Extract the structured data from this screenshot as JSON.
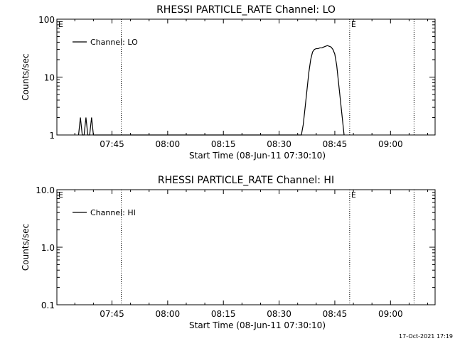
{
  "chart_data": [
    {
      "type": "line",
      "title": "RHESSI PARTICLE_RATE Channel: LO",
      "xlabel": "Start Time (08-Jun-11 07:30:10)",
      "ylabel": "Counts/sec",
      "yscale": "log",
      "xlim": [
        "07:30:10",
        "09:12:00"
      ],
      "ylim": [
        1,
        100
      ],
      "x_ticks": [
        "07:45",
        "08:00",
        "08:15",
        "08:30",
        "08:45",
        "09:00"
      ],
      "y_ticks": [
        "1",
        "10",
        "100"
      ],
      "legend": "top-left",
      "grid": false,
      "series": [
        {
          "name": "Channel: LO",
          "color": "#000000",
          "x": [
            "07:36:00",
            "07:36:30",
            "07:37:00",
            "07:37:30",
            "07:38:00",
            "07:38:30",
            "07:39:00",
            "07:39:30",
            "07:40:00",
            "07:40:30",
            "07:41:00",
            "08:36:00",
            "08:36:30",
            "08:37:00",
            "08:37:30",
            "08:38:00",
            "08:38:30",
            "08:39:00",
            "08:39:30",
            "08:40:00",
            "08:40:30",
            "08:41:00",
            "08:41:30",
            "08:42:00",
            "08:42:30",
            "08:43:00",
            "08:43:30",
            "08:44:00",
            "08:44:30",
            "08:45:00",
            "08:45:30",
            "08:46:00",
            "08:46:30",
            "08:47:00",
            "08:47:30"
          ],
          "y": [
            1,
            2,
            1,
            1,
            2,
            1,
            1,
            2,
            1,
            1,
            1,
            1,
            1.5,
            3,
            6,
            12,
            20,
            27,
            30,
            31,
            31,
            32,
            32,
            33,
            34,
            35,
            34,
            33,
            30,
            25,
            16,
            8,
            4,
            2,
            1
          ]
        }
      ],
      "markers": [
        {
          "label": "E",
          "x": "07:30:10"
        },
        {
          "label": "",
          "x": "07:47:30"
        },
        {
          "label": "E",
          "x": "08:49:00"
        },
        {
          "label": "",
          "x": "09:06:20"
        }
      ]
    },
    {
      "type": "line",
      "title": "RHESSI PARTICLE_RATE Channel: HI",
      "xlabel": "Start Time (08-Jun-11 07:30:10)",
      "ylabel": "Counts/sec",
      "yscale": "log",
      "xlim": [
        "07:30:10",
        "09:12:00"
      ],
      "ylim": [
        0.1,
        10
      ],
      "x_ticks": [
        "07:45",
        "08:00",
        "08:15",
        "08:30",
        "08:45",
        "09:00"
      ],
      "y_ticks": [
        "0.1",
        "1.0",
        "10.0"
      ],
      "legend": "top-left",
      "grid": false,
      "series": [
        {
          "name": "Channel: HI",
          "color": "#000000",
          "x": [],
          "y": []
        }
      ],
      "markers": [
        {
          "label": "E",
          "x": "07:30:10"
        },
        {
          "label": "",
          "x": "07:47:30"
        },
        {
          "label": "E",
          "x": "08:49:00"
        },
        {
          "label": "",
          "x": "09:06:20"
        }
      ]
    }
  ],
  "footer": {
    "timestamp": "17-Oct-2021 17:19"
  }
}
